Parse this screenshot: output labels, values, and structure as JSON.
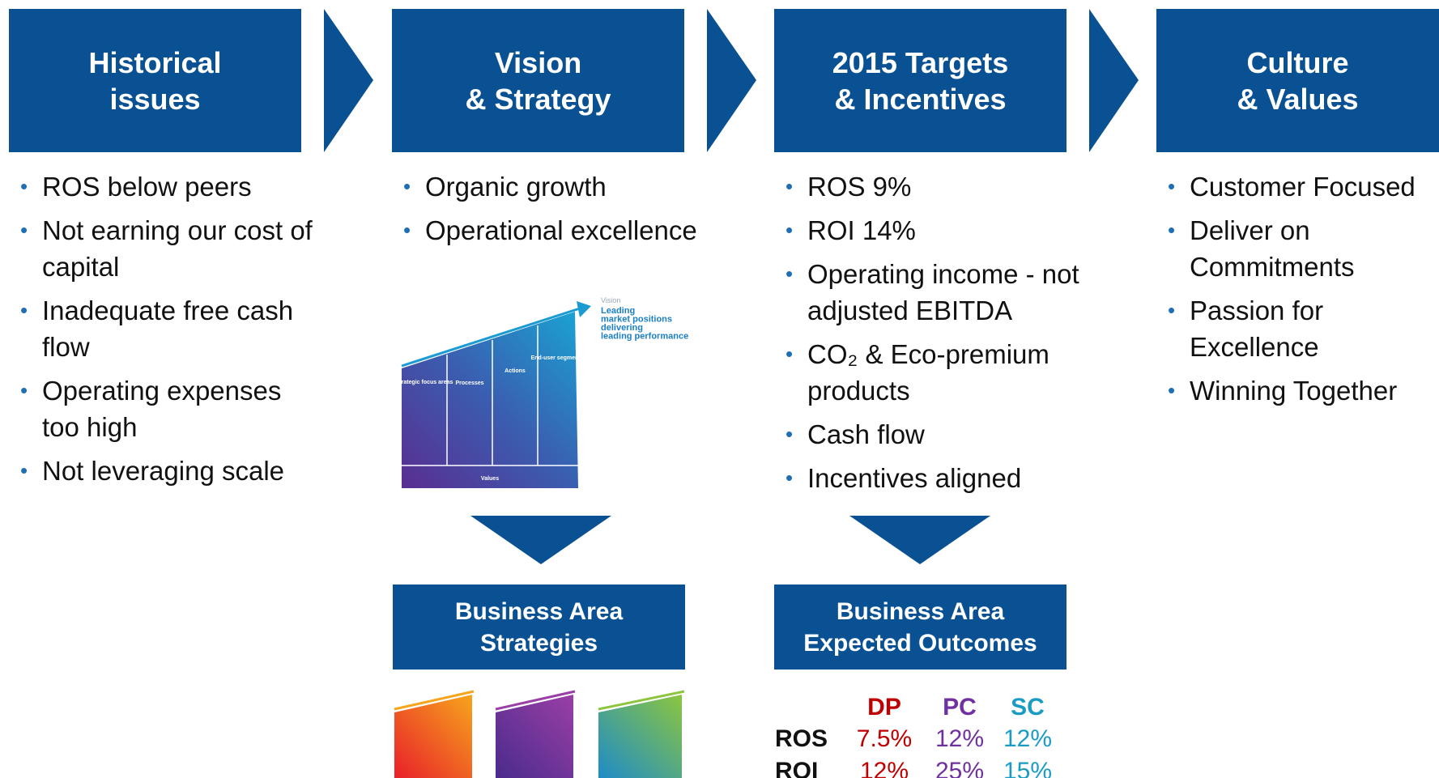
{
  "columns": [
    {
      "title_lines": [
        "Historical",
        "issues"
      ],
      "bullets": [
        "ROS below peers",
        "Not earning our cost of capital",
        "Inadequate free cash flow",
        "Operating expenses too high",
        "Not leveraging scale"
      ]
    },
    {
      "title_lines": [
        "Vision",
        "& Strategy"
      ],
      "bullets": [
        "Organic growth",
        "Operational excellence"
      ]
    },
    {
      "title_lines": [
        "2015 Targets",
        "& Incentives"
      ],
      "bullets": [
        "ROS 9%",
        "ROI 14%",
        "Operating income - not adjusted EBITDA",
        "CO₂ & Eco-premium products",
        "Cash flow",
        "Incentives aligned"
      ]
    },
    {
      "title_lines": [
        "Culture",
        "& Values"
      ],
      "bullets": [
        "Customer Focused",
        "Deliver on Commitments",
        "Passion for Excellence",
        "Winning Together"
      ]
    }
  ],
  "strategy_graphic": {
    "vision": "Vision",
    "vision_text": [
      "Leading",
      "market positions",
      "delivering",
      "leading performance"
    ],
    "sections": [
      "Strategic focus areas",
      "Processes",
      "Actions",
      "End-user segments"
    ],
    "base": "Values"
  },
  "sub_boxes": [
    {
      "title_lines": [
        "Business Area",
        "Strategies"
      ]
    },
    {
      "title_lines": [
        "Business Area",
        "Expected Outcomes"
      ]
    }
  ],
  "outcomes_table": {
    "columns": [
      "DP",
      "PC",
      "SC"
    ],
    "rows": [
      {
        "label": "ROS",
        "values": [
          "7.5%",
          "12%",
          "12%"
        ]
      },
      {
        "label": "ROI",
        "values": [
          "12%",
          "25%",
          "15%"
        ]
      }
    ]
  }
}
